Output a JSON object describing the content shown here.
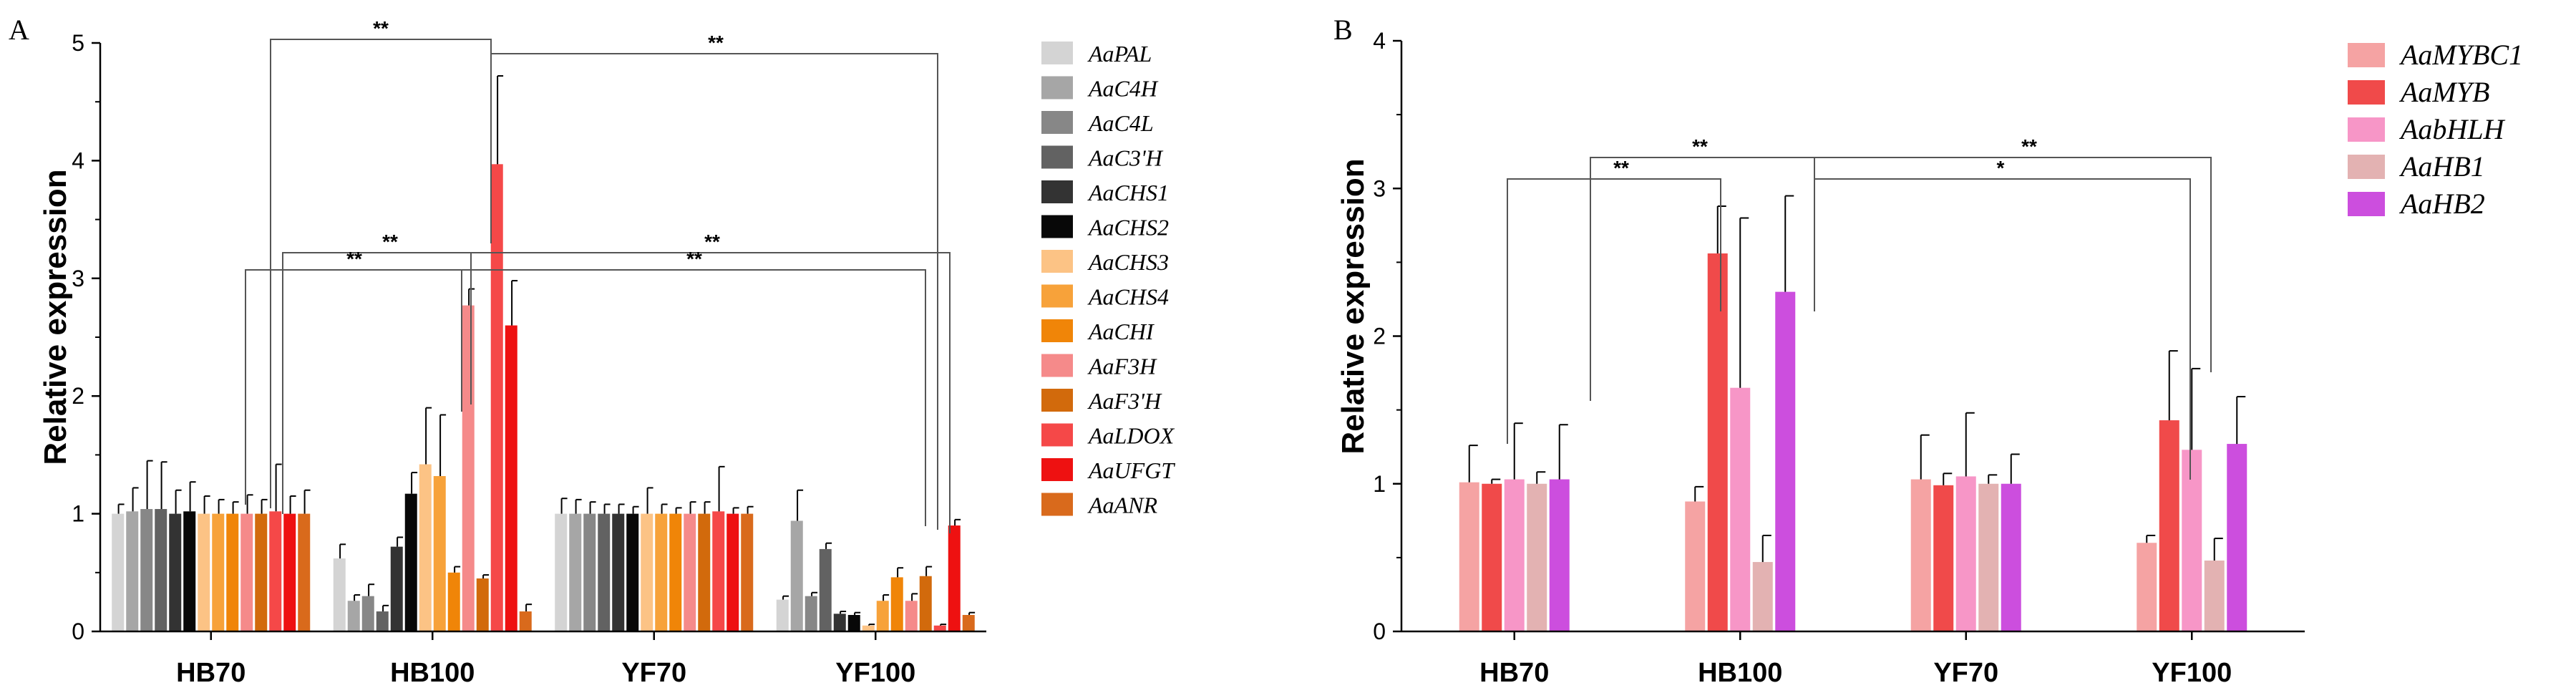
{
  "chart_data": [
    {
      "panel_label": "A",
      "type": "bar",
      "ylabel": "Relative expression",
      "ylim": [
        0,
        5
      ],
      "yticks": [
        "0",
        "1",
        "2",
        "3",
        "4",
        "5"
      ],
      "categories": [
        "HB70",
        "HB100",
        "YF70",
        "YF100"
      ],
      "series": [
        {
          "name": "AaPAL",
          "color": "#d4d4d4",
          "values": [
            1.0,
            0.62,
            1.0,
            0.27
          ],
          "errors": [
            0.08,
            0.12,
            0.13,
            0.03
          ]
        },
        {
          "name": "AaC4H",
          "color": "#a6a6a6",
          "values": [
            1.02,
            0.26,
            1.0,
            0.94
          ],
          "errors": [
            0.2,
            0.05,
            0.12,
            0.26
          ]
        },
        {
          "name": "AaC4L",
          "color": "#878787",
          "values": [
            1.04,
            0.3,
            1.0,
            0.3
          ],
          "errors": [
            0.41,
            0.1,
            0.1,
            0.03
          ]
        },
        {
          "name": "AaC3'H",
          "color": "#626262",
          "values": [
            1.04,
            0.17,
            1.0,
            0.7
          ],
          "errors": [
            0.4,
            0.05,
            0.08,
            0.05
          ]
        },
        {
          "name": "AaCHS1",
          "color": "#333333",
          "values": [
            1.0,
            0.72,
            1.0,
            0.15
          ],
          "errors": [
            0.2,
            0.08,
            0.08,
            0.02
          ]
        },
        {
          "name": "AaCHS2",
          "color": "#080808",
          "values": [
            1.02,
            1.17,
            1.0,
            0.14
          ],
          "errors": [
            0.25,
            0.18,
            0.06,
            0.02
          ]
        },
        {
          "name": "AaCHS3",
          "color": "#fcc385",
          "values": [
            1.0,
            1.42,
            1.0,
            0.05
          ],
          "errors": [
            0.15,
            0.48,
            0.22,
            0.01
          ]
        },
        {
          "name": "AaCHS4",
          "color": "#f7a23a",
          "values": [
            1.0,
            1.32,
            1.0,
            0.26
          ],
          "errors": [
            0.12,
            0.52,
            0.08,
            0.05
          ]
        },
        {
          "name": "AaCHI",
          "color": "#f08508",
          "values": [
            1.0,
            0.5,
            1.0,
            0.46
          ],
          "errors": [
            0.1,
            0.05,
            0.05,
            0.08
          ]
        },
        {
          "name": "AaF3H",
          "color": "#f58a8a",
          "values": [
            1.0,
            2.77,
            1.0,
            0.26
          ],
          "errors": [
            0.16,
            0.14,
            0.1,
            0.06
          ]
        },
        {
          "name": "AaF3'H",
          "color": "#d26a0c",
          "values": [
            1.0,
            0.45,
            1.0,
            0.47
          ],
          "errors": [
            0.12,
            0.03,
            0.1,
            0.08
          ]
        },
        {
          "name": "AaLDOX",
          "color": "#f54848",
          "values": [
            1.02,
            3.97,
            1.02,
            0.05
          ],
          "errors": [
            0.4,
            0.75,
            0.38,
            0.01
          ]
        },
        {
          "name": "AaUFGT",
          "color": "#ee1111",
          "values": [
            1.0,
            2.6,
            1.0,
            0.9
          ],
          "errors": [
            0.15,
            0.38,
            0.05,
            0.05
          ]
        },
        {
          "name": "AaANR",
          "color": "#d96a1c",
          "values": [
            1.0,
            0.17,
            1.0,
            0.14
          ],
          "errors": [
            0.2,
            0.06,
            0.06,
            0.02
          ]
        }
      ],
      "annotations": [
        "**",
        "**",
        "**",
        "**",
        "**",
        "**"
      ]
    },
    {
      "panel_label": "B",
      "type": "bar",
      "ylabel": "Relative expression",
      "ylim": [
        0,
        4
      ],
      "yticks": [
        "0",
        "1",
        "2",
        "3",
        "4"
      ],
      "categories": [
        "HB70",
        "HB100",
        "YF70",
        "YF100"
      ],
      "series": [
        {
          "name": "AaMYBC1",
          "color": "#f5a3a3",
          "values": [
            1.01,
            0.88,
            1.03,
            0.6
          ],
          "errors": [
            0.25,
            0.1,
            0.3,
            0.05
          ]
        },
        {
          "name": "AaMYB",
          "color": "#f04a4a",
          "values": [
            1.0,
            2.56,
            0.99,
            1.43
          ],
          "errors": [
            0.03,
            0.32,
            0.08,
            0.47
          ]
        },
        {
          "name": "AabHLH",
          "color": "#f796c7",
          "values": [
            1.03,
            1.65,
            1.05,
            1.23
          ],
          "errors": [
            0.38,
            1.15,
            0.43,
            0.55
          ]
        },
        {
          "name": "AaHB1",
          "color": "#e3b2b2",
          "values": [
            1.0,
            0.47,
            1.0,
            0.48
          ],
          "errors": [
            0.08,
            0.18,
            0.06,
            0.15
          ]
        },
        {
          "name": "AaHB2",
          "color": "#cc4ede",
          "values": [
            1.03,
            2.3,
            1.0,
            1.27
          ],
          "errors": [
            0.37,
            0.65,
            0.2,
            0.32
          ]
        }
      ],
      "annotations": [
        "**",
        "*",
        "**",
        "**"
      ]
    }
  ]
}
